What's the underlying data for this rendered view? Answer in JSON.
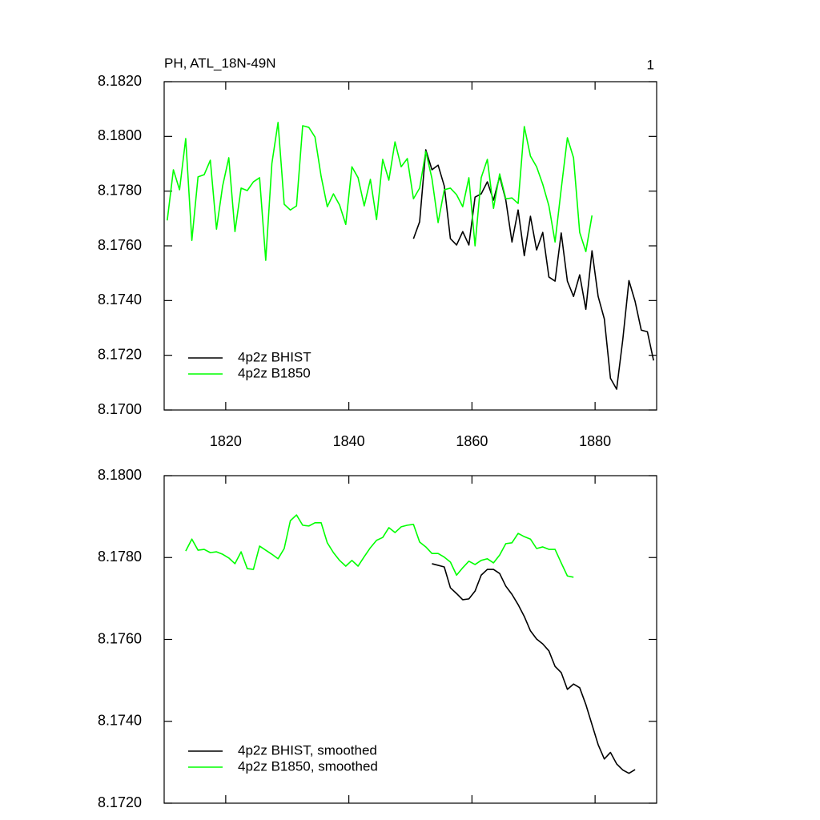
{
  "chart_data": [
    {
      "type": "line",
      "title": "PH, ATL_18N-49N",
      "annotation": "1",
      "xlim": [
        1810,
        1890
      ],
      "xticks": [
        1820,
        1840,
        1860,
        1880
      ],
      "xtick_labels": true,
      "ylim": [
        8.17,
        8.182
      ],
      "yticks": [
        {
          "value": 8.17,
          "label": "8.1700"
        },
        {
          "value": 8.172,
          "label": "8.1720"
        },
        {
          "value": 8.174,
          "label": "8.1740"
        },
        {
          "value": 8.176,
          "label": "8.1760"
        },
        {
          "value": 8.178,
          "label": "8.1780"
        },
        {
          "value": 8.18,
          "label": "8.1800"
        },
        {
          "value": 8.182,
          "label": "8.1820"
        }
      ],
      "legend": "lower left",
      "series": [
        {
          "name": "4p2z BHIST",
          "color": "#000000",
          "x": [
            1850.5,
            1851.5,
            1852.5,
            1853.5,
            1854.5,
            1855.5,
            1856.5,
            1857.5,
            1858.5,
            1859.5,
            1860.5,
            1861.5,
            1862.5,
            1863.5,
            1864.5,
            1865.5,
            1866.5,
            1867.5,
            1868.5,
            1869.5,
            1870.5,
            1871.5,
            1872.5,
            1873.5,
            1874.5,
            1875.5,
            1876.5,
            1877.5,
            1878.5,
            1879.5,
            1880.5,
            1881.5,
            1882.5,
            1883.5,
            1884.5,
            1885.5,
            1886.5,
            1887.5,
            1888.5,
            1889.5
          ],
          "values": [
            8.17626,
            8.17688,
            8.17951,
            8.17878,
            8.17895,
            8.17819,
            8.17626,
            8.17603,
            8.17652,
            8.17603,
            8.17778,
            8.1779,
            8.17834,
            8.17767,
            8.17854,
            8.17767,
            8.17614,
            8.17731,
            8.17564,
            8.17708,
            8.17585,
            8.17649,
            8.17486,
            8.17471,
            8.17647,
            8.17471,
            8.17415,
            8.17494,
            8.17368,
            8.17582,
            8.17415,
            8.17333,
            8.17116,
            8.17076,
            8.17257,
            8.17473,
            8.17397,
            8.17292,
            8.17286,
            8.17181
          ]
        },
        {
          "name": "4p2z B1850",
          "color": "#00ff00",
          "x": [
            1810.5,
            1811.5,
            1812.5,
            1813.5,
            1814.5,
            1815.5,
            1816.5,
            1817.5,
            1818.5,
            1819.5,
            1820.5,
            1821.5,
            1822.5,
            1823.5,
            1824.5,
            1825.5,
            1826.5,
            1827.5,
            1828.5,
            1829.5,
            1830.5,
            1831.5,
            1832.5,
            1833.5,
            1834.5,
            1835.5,
            1836.5,
            1837.5,
            1838.5,
            1839.5,
            1840.5,
            1841.5,
            1842.5,
            1843.5,
            1844.5,
            1845.5,
            1846.5,
            1847.5,
            1848.5,
            1849.5,
            1850.5,
            1851.5,
            1852.5,
            1853.5,
            1854.5,
            1855.5,
            1856.5,
            1857.5,
            1858.5,
            1859.5,
            1860.5,
            1861.5,
            1862.5,
            1863.5,
            1864.5,
            1865.5,
            1866.5,
            1867.5,
            1868.5,
            1869.5,
            1870.5,
            1871.5,
            1872.5,
            1873.5,
            1874.5,
            1875.5,
            1876.5,
            1877.5,
            1878.5,
            1879.5
          ],
          "values": [
            8.17693,
            8.17878,
            8.17805,
            8.17992,
            8.1762,
            8.17852,
            8.1786,
            8.17913,
            8.17661,
            8.17819,
            8.17922,
            8.17652,
            8.17811,
            8.17802,
            8.17834,
            8.17849,
            8.17547,
            8.17901,
            8.18051,
            8.17752,
            8.17731,
            8.17746,
            8.18039,
            8.18033,
            8.17998,
            8.17854,
            8.17743,
            8.1779,
            8.17749,
            8.17678,
            8.17889,
            8.17849,
            8.17746,
            8.17843,
            8.17696,
            8.17916,
            8.1784,
            8.1798,
            8.17889,
            8.17919,
            8.17772,
            8.17811,
            8.17945,
            8.17846,
            8.17685,
            8.17805,
            8.17811,
            8.17787,
            8.17743,
            8.17849,
            8.176,
            8.17849,
            8.17916,
            8.17737,
            8.17863,
            8.17772,
            8.17775,
            8.17755,
            8.18036,
            8.17928,
            8.17889,
            8.17825,
            8.17746,
            8.17614,
            8.17808,
            8.17995,
            8.17922,
            8.17649,
            8.17579,
            8.17711
          ]
        }
      ]
    },
    {
      "type": "line",
      "xlim": [
        1810,
        1890
      ],
      "xticks": [
        1820,
        1840,
        1860,
        1880
      ],
      "xtick_labels": false,
      "ylim": [
        8.172,
        8.18
      ],
      "yticks": [
        {
          "value": 8.172,
          "label": "8.1720"
        },
        {
          "value": 8.174,
          "label": "8.1740"
        },
        {
          "value": 8.176,
          "label": "8.1760"
        },
        {
          "value": 8.178,
          "label": "8.1780"
        },
        {
          "value": 8.18,
          "label": "8.1800"
        }
      ],
      "legend": "lower left",
      "series": [
        {
          "name": "4p2z BHIST, smoothed",
          "color": "#000000",
          "x": [
            1853.5,
            1854.5,
            1855.5,
            1856.5,
            1857.5,
            1858.5,
            1859.5,
            1860.5,
            1861.5,
            1862.5,
            1863.5,
            1864.5,
            1865.5,
            1866.5,
            1867.5,
            1868.5,
            1869.5,
            1870.5,
            1871.5,
            1872.5,
            1873.5,
            1874.5,
            1875.5,
            1876.5,
            1877.5,
            1878.5,
            1879.5,
            1880.5,
            1881.5,
            1882.5,
            1883.5,
            1884.5,
            1885.5,
            1886.5
          ],
          "values": [
            8.17785,
            8.17781,
            8.17777,
            8.17726,
            8.17712,
            8.17697,
            8.17699,
            8.17718,
            8.17757,
            8.17771,
            8.17771,
            8.17761,
            8.1773,
            8.1771,
            8.17685,
            8.17656,
            8.17621,
            8.17601,
            8.17589,
            8.17572,
            8.17534,
            8.17519,
            8.17478,
            8.17491,
            8.17482,
            8.17441,
            8.17392,
            8.17343,
            8.17308,
            8.17324,
            8.17296,
            8.17281,
            8.17273,
            8.17282
          ]
        },
        {
          "name": "4p2z B1850, smoothed",
          "color": "#00ff00",
          "x": [
            1813.5,
            1814.5,
            1815.5,
            1816.5,
            1817.5,
            1818.5,
            1819.5,
            1820.5,
            1821.5,
            1822.5,
            1823.5,
            1824.5,
            1825.5,
            1826.5,
            1827.5,
            1828.5,
            1829.5,
            1830.5,
            1831.5,
            1832.5,
            1833.5,
            1834.5,
            1835.5,
            1836.5,
            1837.5,
            1838.5,
            1839.5,
            1840.5,
            1841.5,
            1842.5,
            1843.5,
            1844.5,
            1845.5,
            1846.5,
            1847.5,
            1848.5,
            1849.5,
            1850.5,
            1851.5,
            1852.5,
            1853.5,
            1854.5,
            1855.5,
            1856.5,
            1857.5,
            1858.5,
            1859.5,
            1860.5,
            1861.5,
            1862.5,
            1863.5,
            1864.5,
            1865.5,
            1866.5,
            1867.5,
            1868.5,
            1869.5,
            1870.5,
            1871.5,
            1872.5,
            1873.5,
            1874.5,
            1875.5,
            1876.5
          ],
          "values": [
            8.17816,
            8.17845,
            8.17818,
            8.1782,
            8.17812,
            8.17814,
            8.17808,
            8.17799,
            8.17785,
            8.17814,
            8.17773,
            8.17771,
            8.17828,
            8.17818,
            8.17808,
            8.17797,
            8.17822,
            8.1789,
            8.17904,
            8.17879,
            8.17877,
            8.17885,
            8.17885,
            8.17836,
            8.17812,
            8.17793,
            8.17779,
            8.17793,
            8.17779,
            8.17802,
            8.17824,
            8.17842,
            8.17849,
            8.17873,
            8.17861,
            8.17875,
            8.17879,
            8.17881,
            8.17838,
            8.17826,
            8.1781,
            8.1781,
            8.17801,
            8.17789,
            8.17757,
            8.17775,
            8.17791,
            8.17783,
            8.17793,
            8.17797,
            8.17787,
            8.17806,
            8.17834,
            8.17836,
            8.17859,
            8.17851,
            8.17845,
            8.17822,
            8.17826,
            8.1782,
            8.1782,
            8.17787,
            8.17755,
            8.17752
          ]
        }
      ]
    }
  ]
}
